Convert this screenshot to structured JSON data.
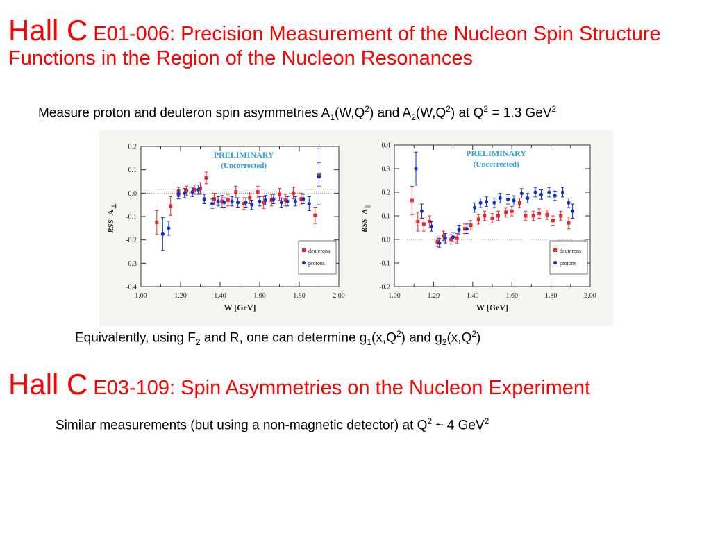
{
  "slide": {
    "section1": {
      "title_big": "Hall C",
      "title_small": " E01-006: Precision Measurement of the Nucleon Spin Structure Functions in the Region of the Nucleon Resonances"
    },
    "line1": {
      "t1": "Measure proton and deuteron spin asymmetries A",
      "s1": "1",
      "t2": "(W,Q",
      "s2": "2",
      "t3": ") and A",
      "s3": "2",
      "t4": "(W,Q",
      "s4": "2",
      "t5": ") at Q",
      "s5": "2",
      "t6": " = 1.3 GeV",
      "s6": "2"
    },
    "line2": {
      "t1": "Equivalently, using F",
      "s1": "2",
      "t2": " and R, one can determine g",
      "s2": "1",
      "t3": "(x,Q",
      "s3": "2",
      "t4": ") and g",
      "s4": "2",
      "t5": "(x,Q",
      "s5": "2",
      "t6": ")"
    },
    "section2": {
      "title_big": "Hall C",
      "title_small": " E03-109: Spin Asymmetries on the Nucleon Experiment"
    },
    "line3": {
      "t1": "Similar measurements (but using a non-magnetic detector) at Q",
      "s1": "2",
      "t2": " ~ 4 GeV",
      "s2": "2"
    }
  },
  "chart_data": [
    {
      "type": "scatter",
      "panel": "left",
      "annotation": [
        "PRELIMINARY",
        "(Uncorrected)"
      ],
      "xlabel": "W [GeV]",
      "ylabel_rss": "RSS",
      "ylabel_a": "A",
      "ylabel_sub": "⊥",
      "xlim": [
        1.0,
        2.0
      ],
      "ylim": [
        -0.4,
        0.2
      ],
      "xticks": [
        "1.00",
        "1.20",
        "1.40",
        "1.60",
        "1.80",
        "2.00"
      ],
      "yticks": [
        "0.2",
        "0.1",
        "0.0",
        "-0.1",
        "-0.2",
        "-0.3",
        "-0.4"
      ],
      "legend_position": "bottom-right",
      "series": [
        {
          "name": "deuterons",
          "color": "#e8262a",
          "points": [
            [
              1.08,
              -0.125,
              0.05
            ],
            [
              1.15,
              -0.055,
              0.04
            ],
            [
              1.19,
              0.005,
              0.02
            ],
            [
              1.23,
              0.01,
              0.02
            ],
            [
              1.27,
              0.015,
              0.02
            ],
            [
              1.3,
              0.02,
              0.025
            ],
            [
              1.33,
              0.065,
              0.025
            ],
            [
              1.37,
              -0.025,
              0.025
            ],
            [
              1.41,
              -0.035,
              0.025
            ],
            [
              1.44,
              -0.03,
              0.025
            ],
            [
              1.48,
              0.005,
              0.025
            ],
            [
              1.52,
              -0.045,
              0.025
            ],
            [
              1.55,
              -0.02,
              0.025
            ],
            [
              1.59,
              0.005,
              0.025
            ],
            [
              1.62,
              -0.04,
              0.025
            ],
            [
              1.66,
              -0.03,
              0.025
            ],
            [
              1.7,
              -0.005,
              0.025
            ],
            [
              1.73,
              -0.03,
              0.025
            ],
            [
              1.77,
              0.0,
              0.025
            ],
            [
              1.81,
              -0.025,
              0.025
            ],
            [
              1.88,
              -0.095,
              0.035
            ],
            [
              1.9,
              0.08,
              0.05
            ]
          ]
        },
        {
          "name": "protons",
          "color": "#1030d0",
          "points": [
            [
              1.11,
              -0.175,
              0.07
            ],
            [
              1.14,
              -0.15,
              0.03
            ],
            [
              1.19,
              -0.005,
              0.02
            ],
            [
              1.22,
              0.0,
              0.02
            ],
            [
              1.26,
              0.005,
              0.02
            ],
            [
              1.29,
              0.015,
              0.02
            ],
            [
              1.32,
              -0.025,
              0.02
            ],
            [
              1.36,
              -0.045,
              0.02
            ],
            [
              1.39,
              -0.035,
              0.02
            ],
            [
              1.42,
              -0.04,
              0.02
            ],
            [
              1.46,
              -0.035,
              0.02
            ],
            [
              1.49,
              -0.04,
              0.02
            ],
            [
              1.53,
              -0.04,
              0.02
            ],
            [
              1.56,
              -0.05,
              0.02
            ],
            [
              1.6,
              -0.035,
              0.02
            ],
            [
              1.63,
              -0.03,
              0.02
            ],
            [
              1.67,
              -0.025,
              0.02
            ],
            [
              1.71,
              -0.04,
              0.02
            ],
            [
              1.74,
              -0.035,
              0.02
            ],
            [
              1.78,
              -0.035,
              0.02
            ],
            [
              1.82,
              -0.025,
              0.02
            ],
            [
              1.85,
              -0.045,
              0.03
            ],
            [
              1.9,
              0.07,
              0.12
            ]
          ]
        }
      ]
    },
    {
      "type": "scatter",
      "panel": "right",
      "annotation": [
        "PRELIMINARY",
        "(Uncorrected)"
      ],
      "xlabel": "W [GeV]",
      "ylabel_rss": "RSS",
      "ylabel_a": "A",
      "ylabel_sub": "||",
      "xlim": [
        1.0,
        2.0
      ],
      "ylim": [
        -0.2,
        0.4
      ],
      "xticks": [
        "1.00",
        "1.20",
        "1.40",
        "1.60",
        "1.80",
        "2.00"
      ],
      "yticks": [
        "0.4",
        "0.3",
        "0.2",
        "0.1",
        "0.0",
        "-0.1",
        "-0.2"
      ],
      "legend_position": "bottom-right",
      "series": [
        {
          "name": "deuterons",
          "color": "#e8262a",
          "points": [
            [
              1.09,
              0.165,
              0.06
            ],
            [
              1.12,
              0.075,
              0.04
            ],
            [
              1.15,
              0.065,
              0.03
            ],
            [
              1.18,
              0.075,
              0.025
            ],
            [
              1.22,
              -0.01,
              0.02
            ],
            [
              1.25,
              0.015,
              0.02
            ],
            [
              1.29,
              0.0,
              0.02
            ],
            [
              1.32,
              0.005,
              0.02
            ],
            [
              1.36,
              0.045,
              0.02
            ],
            [
              1.39,
              0.06,
              0.02
            ],
            [
              1.43,
              0.085,
              0.02
            ],
            [
              1.46,
              0.1,
              0.02
            ],
            [
              1.5,
              0.09,
              0.02
            ],
            [
              1.53,
              0.1,
              0.02
            ],
            [
              1.57,
              0.115,
              0.02
            ],
            [
              1.6,
              0.12,
              0.02
            ],
            [
              1.64,
              0.155,
              0.02
            ],
            [
              1.67,
              0.1,
              0.02
            ],
            [
              1.71,
              0.1,
              0.02
            ],
            [
              1.74,
              0.11,
              0.02
            ],
            [
              1.78,
              0.105,
              0.02
            ],
            [
              1.81,
              0.08,
              0.02
            ],
            [
              1.85,
              0.1,
              0.02
            ],
            [
              1.89,
              0.07,
              0.025
            ]
          ]
        },
        {
          "name": "protons",
          "color": "#1030d0",
          "points": [
            [
              1.11,
              0.3,
              0.07
            ],
            [
              1.14,
              0.12,
              0.03
            ],
            [
              1.19,
              0.055,
              0.02
            ],
            [
              1.23,
              -0.015,
              0.02
            ],
            [
              1.26,
              0.005,
              0.02
            ],
            [
              1.3,
              0.01,
              0.02
            ],
            [
              1.33,
              0.04,
              0.02
            ],
            [
              1.37,
              0.045,
              0.02
            ],
            [
              1.41,
              0.135,
              0.02
            ],
            [
              1.44,
              0.155,
              0.02
            ],
            [
              1.47,
              0.16,
              0.02
            ],
            [
              1.51,
              0.155,
              0.02
            ],
            [
              1.54,
              0.175,
              0.02
            ],
            [
              1.58,
              0.17,
              0.02
            ],
            [
              1.61,
              0.165,
              0.02
            ],
            [
              1.65,
              0.195,
              0.02
            ],
            [
              1.68,
              0.175,
              0.02
            ],
            [
              1.72,
              0.2,
              0.02
            ],
            [
              1.75,
              0.19,
              0.02
            ],
            [
              1.79,
              0.2,
              0.02
            ],
            [
              1.82,
              0.185,
              0.02
            ],
            [
              1.86,
              0.2,
              0.02
            ],
            [
              1.89,
              0.155,
              0.02
            ],
            [
              1.91,
              0.12,
              0.03
            ]
          ]
        }
      ]
    }
  ]
}
